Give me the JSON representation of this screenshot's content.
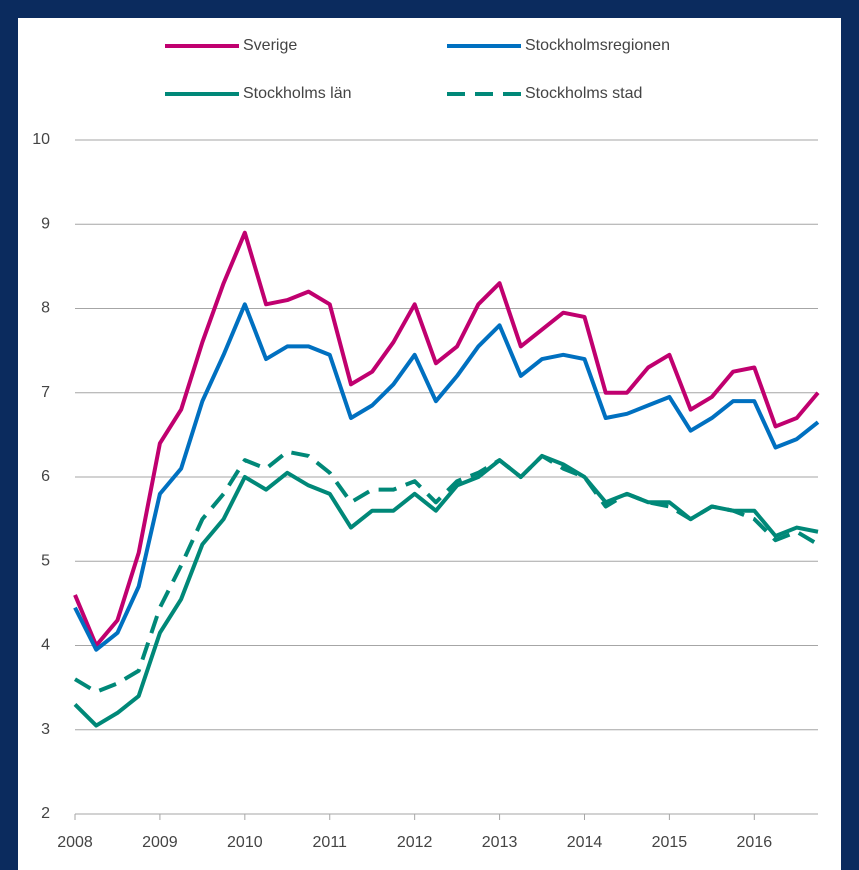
{
  "chart_data": {
    "type": "line",
    "x": [
      2008,
      2008.25,
      2008.5,
      2008.75,
      2009,
      2009.25,
      2009.5,
      2009.75,
      2010,
      2010.25,
      2010.5,
      2010.75,
      2011,
      2011.25,
      2011.5,
      2011.75,
      2012,
      2012.25,
      2012.5,
      2012.75,
      2013,
      2013.25,
      2013.5,
      2013.75,
      2014,
      2014.25,
      2014.5,
      2014.75,
      2015,
      2015.25,
      2015.5,
      2015.75,
      2016,
      2016.25,
      2016.5,
      2016.75
    ],
    "xlim": [
      2008,
      2016.75
    ],
    "xticks": [
      2008,
      2009,
      2010,
      2011,
      2012,
      2013,
      2014,
      2015,
      2016
    ],
    "ylim": [
      2,
      10
    ],
    "yticks": [
      2,
      3,
      4,
      5,
      6,
      7,
      8,
      9,
      10
    ],
    "grid": true,
    "series": [
      {
        "name": "Sverige",
        "color": "#c0006f",
        "dashed": false,
        "values": [
          4.6,
          4.0,
          4.3,
          5.1,
          6.4,
          6.8,
          7.6,
          8.3,
          8.9,
          8.05,
          8.1,
          8.2,
          8.05,
          7.1,
          7.25,
          7.6,
          8.05,
          7.35,
          7.55,
          8.05,
          8.3,
          7.55,
          7.75,
          7.95,
          7.9,
          7.0,
          7.0,
          7.3,
          7.45,
          6.8,
          6.95,
          7.25,
          7.3,
          6.6,
          6.7,
          7.0
        ]
      },
      {
        "name": "Stockholmsregionen",
        "color": "#0070c0",
        "dashed": false,
        "values": [
          4.45,
          3.95,
          4.15,
          4.7,
          5.8,
          6.1,
          6.9,
          7.45,
          8.05,
          7.4,
          7.55,
          7.55,
          7.45,
          6.7,
          6.85,
          7.1,
          7.45,
          6.9,
          7.2,
          7.55,
          7.8,
          7.2,
          7.4,
          7.45,
          7.4,
          6.7,
          6.75,
          6.85,
          6.95,
          6.55,
          6.7,
          6.9,
          6.9,
          6.35,
          6.45,
          6.65
        ]
      },
      {
        "name": "Stockholms län",
        "color": "#008878",
        "dashed": false,
        "values": [
          3.3,
          3.05,
          3.2,
          3.4,
          4.15,
          4.55,
          5.2,
          5.5,
          6.0,
          5.85,
          6.05,
          5.9,
          5.8,
          5.4,
          5.6,
          5.6,
          5.8,
          5.6,
          5.9,
          6.0,
          6.2,
          6.0,
          6.25,
          6.15,
          6.0,
          5.7,
          5.8,
          5.7,
          5.7,
          5.5,
          5.65,
          5.6,
          5.6,
          5.3,
          5.4,
          5.35
        ]
      },
      {
        "name": "Stockholms stad",
        "color": "#008878",
        "dashed": true,
        "values": [
          3.6,
          3.45,
          3.55,
          3.7,
          4.45,
          4.95,
          5.5,
          5.8,
          6.2,
          6.1,
          6.3,
          6.25,
          6.05,
          5.7,
          5.85,
          5.85,
          5.95,
          5.7,
          5.95,
          6.05,
          6.2,
          6.0,
          6.25,
          6.1,
          6.0,
          5.65,
          5.8,
          5.7,
          5.65,
          5.5,
          5.65,
          5.6,
          5.5,
          5.25,
          5.35,
          5.2
        ]
      }
    ]
  }
}
